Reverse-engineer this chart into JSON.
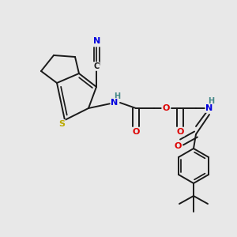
{
  "bg_color": "#e8e8e8",
  "bond_color": "#1a1a1a",
  "bond_width": 1.4,
  "dbo": 0.006,
  "atom_colors": {
    "N": "#0000dd",
    "O": "#dd0000",
    "S": "#bbaa00",
    "H": "#448888",
    "C": "#1a1a1a"
  },
  "fs": 7.0
}
